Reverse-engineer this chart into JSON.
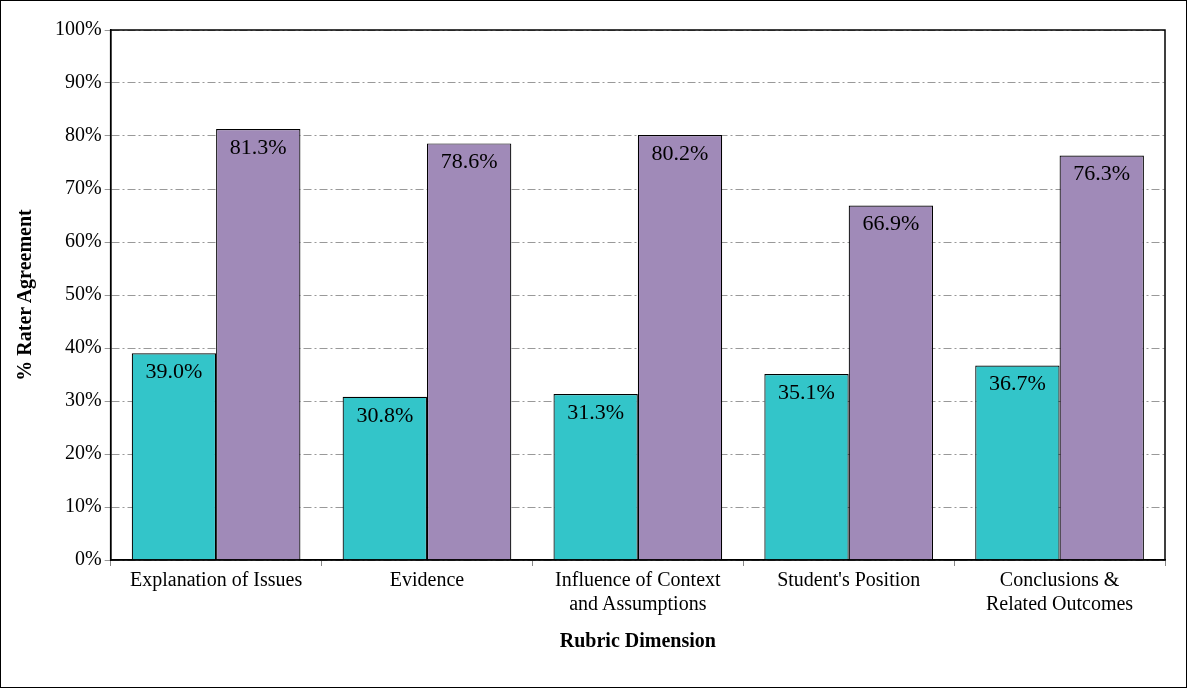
{
  "chart_data": {
    "type": "bar",
    "xlabel": "Rubric Dimension",
    "ylabel": "% Rater Agreement",
    "categories": [
      "Explanation of Issues",
      "Evidence",
      "Influence of Context and Assumptions",
      "Student's Position",
      "Conclusions & Related Outcomes"
    ],
    "series": [
      {
        "color": "#33c5c9",
        "values": [
          39.0,
          30.8,
          31.3,
          35.1,
          36.7
        ],
        "value_labels": [
          "39.0%",
          "30.8%",
          "31.3%",
          "35.1%",
          "36.7%"
        ]
      },
      {
        "color": "#a08ab8",
        "values": [
          81.3,
          78.6,
          80.2,
          66.9,
          76.3
        ],
        "value_labels": [
          "81.3%",
          "78.6%",
          "80.2%",
          "66.9%",
          "76.3%"
        ]
      }
    ],
    "ylim": [
      0,
      100
    ],
    "yticks": [
      {
        "value": 0,
        "label": "0%"
      },
      {
        "value": 10,
        "label": "10%"
      },
      {
        "value": 20,
        "label": "20%"
      },
      {
        "value": 30,
        "label": "30%"
      },
      {
        "value": 40,
        "label": "40%"
      },
      {
        "value": 50,
        "label": "50%"
      },
      {
        "value": 60,
        "label": "60%"
      },
      {
        "value": 70,
        "label": "70%"
      },
      {
        "value": 80,
        "label": "80%"
      },
      {
        "value": 90,
        "label": "90%"
      },
      {
        "value": 100,
        "label": "100%"
      }
    ],
    "grid": "y",
    "legend": false
  }
}
